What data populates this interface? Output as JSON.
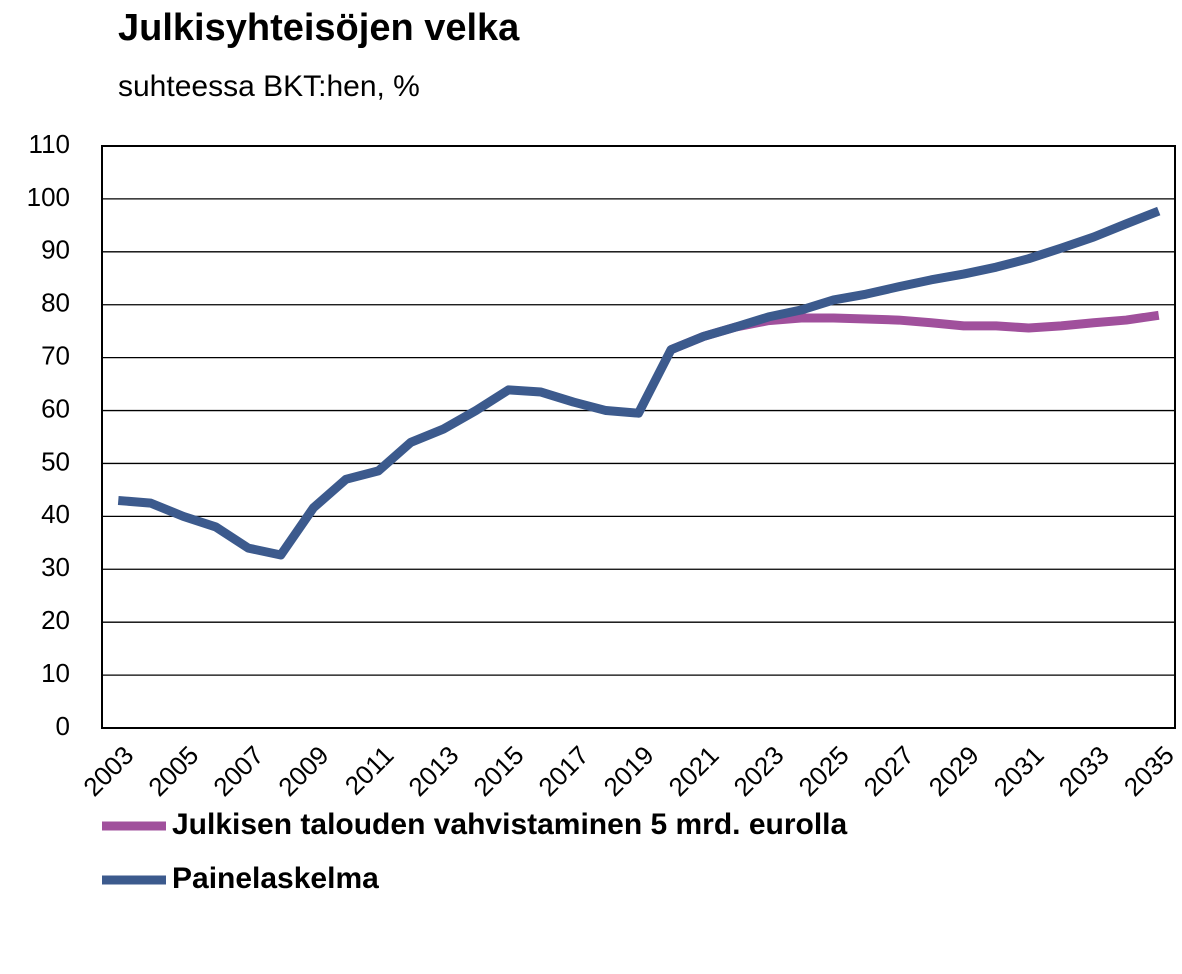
{
  "chart_data": {
    "type": "line",
    "title": "Julkisyhteisöjen velka",
    "subtitle": "suhteessa BKT:hen, %",
    "categories": [
      "2003",
      null,
      "2005",
      null,
      "2007",
      null,
      "2009",
      null,
      "2011",
      null,
      "2013",
      null,
      "2015",
      null,
      "2017",
      null,
      "2019",
      null,
      "2021",
      null,
      "2023",
      null,
      "2025",
      null,
      "2027",
      null,
      "2029",
      null,
      "2031",
      null,
      "2033",
      null,
      "2035"
    ],
    "series": [
      {
        "name": "Julkisen talouden vahvistaminen 5 mrd. eurolla",
        "color": "#a0509c",
        "values": [
          null,
          null,
          null,
          null,
          null,
          null,
          null,
          null,
          null,
          null,
          null,
          null,
          null,
          null,
          null,
          null,
          null,
          71.5,
          74,
          75.8,
          77,
          77.5,
          77.5,
          77.3,
          77.1,
          76.6,
          76,
          76,
          75.6,
          76,
          76.6,
          77.1,
          78
        ]
      },
      {
        "name": "Painelaskelma",
        "color": "#3c5a8d",
        "values": [
          43,
          42.5,
          40,
          38,
          34,
          32.7,
          41.6,
          47,
          48.6,
          54,
          56.5,
          60,
          63.9,
          63.5,
          61.6,
          60,
          59.5,
          71.5,
          74,
          75.8,
          77.7,
          79,
          80.9,
          82,
          83.4,
          84.7,
          85.8,
          87.1,
          88.7,
          90.7,
          92.8,
          95.3,
          97.7
        ]
      }
    ],
    "ylim": [
      0,
      110
    ],
    "yticks": [
      0,
      10,
      20,
      30,
      40,
      50,
      60,
      70,
      80,
      90,
      100,
      110
    ],
    "grid": true,
    "legend": "bottom"
  }
}
